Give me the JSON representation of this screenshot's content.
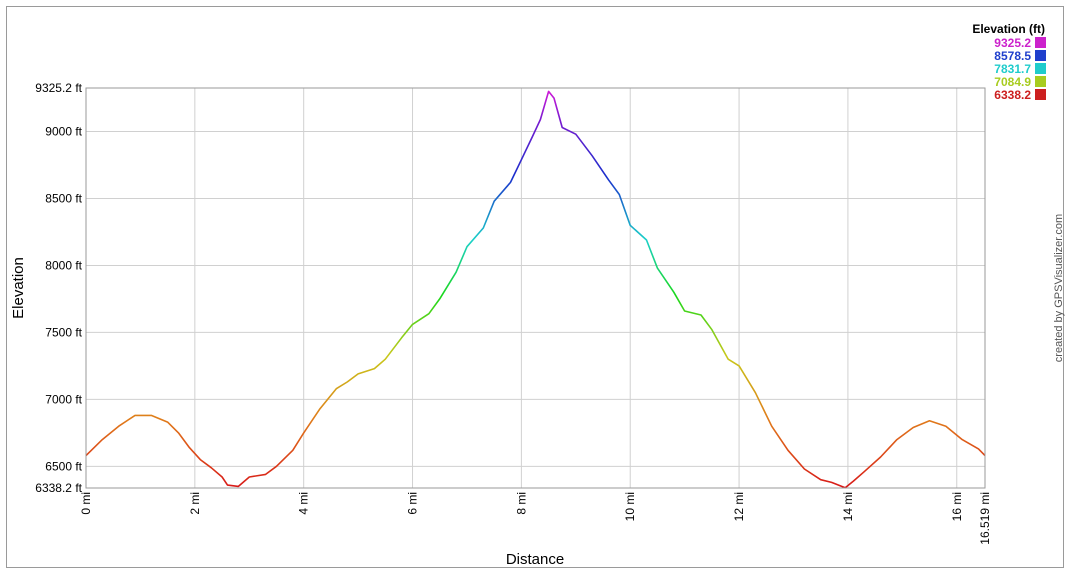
{
  "chart_data": {
    "type": "line",
    "xlabel": "Distance",
    "ylabel": "Elevation",
    "x_unit": "mi",
    "y_unit": "ft",
    "xlim": [
      0,
      16.519
    ],
    "ylim": [
      6338.2,
      9325.2
    ],
    "x_ticks": [
      {
        "value": 0,
        "label": "0 mi"
      },
      {
        "value": 2,
        "label": "2 mi"
      },
      {
        "value": 4,
        "label": "4 mi"
      },
      {
        "value": 6,
        "label": "6 mi"
      },
      {
        "value": 8,
        "label": "8 mi"
      },
      {
        "value": 10,
        "label": "10 mi"
      },
      {
        "value": 12,
        "label": "12 mi"
      },
      {
        "value": 14,
        "label": "14 mi"
      },
      {
        "value": 16,
        "label": "16 mi"
      },
      {
        "value": 16.519,
        "label": "16.519 mi"
      }
    ],
    "y_ticks": [
      {
        "value": 6338.2,
        "label": "6338.2 ft"
      },
      {
        "value": 6500,
        "label": "6500 ft"
      },
      {
        "value": 7000,
        "label": "7000 ft"
      },
      {
        "value": 7500,
        "label": "7500 ft"
      },
      {
        "value": 8000,
        "label": "8000 ft"
      },
      {
        "value": 8500,
        "label": "8500 ft"
      },
      {
        "value": 9000,
        "label": "9000 ft"
      },
      {
        "value": 9325.2,
        "label": "9325.2 ft"
      }
    ],
    "grid": true,
    "legend": {
      "title": "Elevation (ft)",
      "placement": "top-right",
      "entries": [
        {
          "label": "9325.2",
          "color": "#cc22cc"
        },
        {
          "label": "8578.5",
          "color": "#1f3fcc"
        },
        {
          "label": "7831.7",
          "color": "#1fcccc"
        },
        {
          "label": "7084.9",
          "color": "#a8cc1f"
        },
        {
          "label": "6338.2",
          "color": "#cc1f1f"
        }
      ]
    },
    "series": [
      {
        "x": [
          0,
          0.3,
          0.6,
          0.9,
          1.2,
          1.5,
          1.7,
          1.9,
          2.1,
          2.3,
          2.5,
          2.6,
          2.8,
          3.0,
          3.3,
          3.5,
          3.8,
          4.0,
          4.3,
          4.6,
          4.8,
          5.0,
          5.3,
          5.5,
          5.8,
          6.0,
          6.3,
          6.5,
          6.8,
          7.0,
          7.3,
          7.5,
          7.8,
          8.0,
          8.2,
          8.35,
          8.5,
          8.6,
          8.75,
          9.0,
          9.3,
          9.6,
          9.8,
          10.0,
          10.3,
          10.5,
          10.8,
          11.0,
          11.3,
          11.5,
          11.8,
          12.0,
          12.3,
          12.6,
          12.9,
          13.2,
          13.5,
          13.7,
          13.95,
          14.1,
          14.3,
          14.6,
          14.9,
          15.2,
          15.5,
          15.8,
          16.1,
          16.4,
          16.519
        ],
        "y": [
          6580,
          6700,
          6800,
          6880,
          6880,
          6830,
          6750,
          6640,
          6550,
          6490,
          6420,
          6360,
          6350,
          6420,
          6440,
          6500,
          6620,
          6750,
          6930,
          7080,
          7130,
          7190,
          7230,
          7300,
          7460,
          7560,
          7640,
          7750,
          7950,
          8140,
          8280,
          8480,
          8620,
          8790,
          8960,
          9090,
          9300,
          9250,
          9030,
          8980,
          8820,
          8640,
          8530,
          8300,
          8190,
          7980,
          7800,
          7660,
          7630,
          7520,
          7300,
          7250,
          7050,
          6800,
          6620,
          6480,
          6400,
          6380,
          6340,
          6390,
          6460,
          6570,
          6700,
          6790,
          6840,
          6800,
          6700,
          6630,
          6580
        ]
      }
    ],
    "credit": "created by GPSVisualizer.com"
  }
}
